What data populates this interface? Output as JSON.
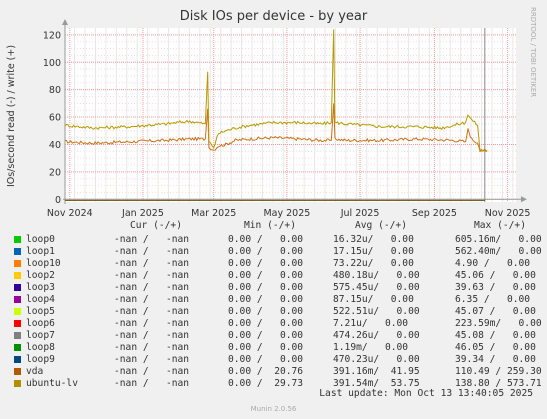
{
  "window": {
    "title": "Disk IOs per device - by year"
  },
  "side_label": "RRDTOOL / TOBI OETIKER",
  "chart_data": {
    "type": "line",
    "title": "Disk IOs per device - by year",
    "ylabel": "IOs/second read (-) / write (+)",
    "ylim": [
      -2,
      125
    ],
    "yticks": [
      0,
      20,
      40,
      60,
      80,
      100,
      120
    ],
    "xticks": [
      {
        "label": "Nov 2024",
        "t": 0
      },
      {
        "label": "Jan 2025",
        "t": 61
      },
      {
        "label": "Mar 2025",
        "t": 120
      },
      {
        "label": "May 2025",
        "t": 181
      },
      {
        "label": "Jul 2025",
        "t": 242
      },
      {
        "label": "Sep 2025",
        "t": 304
      },
      {
        "label": "Nov 2025",
        "t": 365
      }
    ],
    "xlim": [
      -4,
      372
    ],
    "now_marker_t": 346,
    "grid": true,
    "series": [
      {
        "name": "vda",
        "color": "#cc7016",
        "points": [
          [
            -4,
            42
          ],
          [
            20,
            41
          ],
          [
            50,
            42
          ],
          [
            80,
            43
          ],
          [
            100,
            44
          ],
          [
            113,
            44
          ],
          [
            115,
            66
          ],
          [
            116,
            38
          ],
          [
            120,
            36
          ],
          [
            124,
            39
          ],
          [
            130,
            40
          ],
          [
            138,
            43
          ],
          [
            150,
            44
          ],
          [
            170,
            45
          ],
          [
            190,
            44
          ],
          [
            210,
            43
          ],
          [
            218,
            43
          ],
          [
            220,
            70
          ],
          [
            221,
            44
          ],
          [
            230,
            43
          ],
          [
            260,
            43
          ],
          [
            290,
            44
          ],
          [
            320,
            43
          ],
          [
            330,
            42
          ],
          [
            332,
            51
          ],
          [
            335,
            44
          ],
          [
            340,
            41
          ],
          [
            342,
            36
          ],
          [
            348,
            35
          ]
        ]
      },
      {
        "name": "ubuntu-lv",
        "color": "#b59a00",
        "points": [
          [
            -4,
            54
          ],
          [
            20,
            52
          ],
          [
            50,
            53
          ],
          [
            80,
            55
          ],
          [
            100,
            57
          ],
          [
            113,
            55
          ],
          [
            115,
            93
          ],
          [
            116,
            42
          ],
          [
            120,
            38
          ],
          [
            124,
            48
          ],
          [
            130,
            50
          ],
          [
            138,
            52
          ],
          [
            150,
            54
          ],
          [
            170,
            56
          ],
          [
            190,
            56
          ],
          [
            210,
            55
          ],
          [
            218,
            56
          ],
          [
            220,
            124
          ],
          [
            221,
            56
          ],
          [
            230,
            55
          ],
          [
            260,
            53
          ],
          [
            290,
            53
          ],
          [
            310,
            52
          ],
          [
            325,
            55
          ],
          [
            330,
            56
          ],
          [
            332,
            62
          ],
          [
            335,
            58
          ],
          [
            340,
            54
          ],
          [
            342,
            36
          ],
          [
            348,
            35
          ]
        ]
      }
    ]
  },
  "legend": {
    "headers": {
      "cur": "Cur (-/+)",
      "min": "Min (-/+)",
      "avg": "Avg (-/+)",
      "max": "Max (-/+)"
    },
    "rows": [
      {
        "color": "#00cc00",
        "name": "loop0",
        "cur": "-nan /   -nan",
        "min": "0.00 /   0.00",
        "avg": "16.32u/   0.00",
        "max": "605.16m/   0.00"
      },
      {
        "color": "#0066b3",
        "name": "loop1",
        "cur": "-nan /   -nan",
        "min": "0.00 /   0.00",
        "avg": "17.15u/   0.00",
        "max": "562.40m/   0.00"
      },
      {
        "color": "#ff8000",
        "name": "loop10",
        "cur": "-nan /   -nan",
        "min": "0.00 /   0.00",
        "avg": "73.22u/   0.00",
        "max": "4.90 /   0.00"
      },
      {
        "color": "#ffcc00",
        "name": "loop2",
        "cur": "-nan /   -nan",
        "min": "0.00 /   0.00",
        "avg": "480.18u/   0.00",
        "max": "45.06 /   0.00"
      },
      {
        "color": "#330099",
        "name": "loop3",
        "cur": "-nan /   -nan",
        "min": "0.00 /   0.00",
        "avg": "575.45u/   0.00",
        "max": "39.63 /   0.00"
      },
      {
        "color": "#990099",
        "name": "loop4",
        "cur": "-nan /   -nan",
        "min": "0.00 /   0.00",
        "avg": "87.15u/   0.00",
        "max": "6.35 /   0.00"
      },
      {
        "color": "#ccff00",
        "name": "loop5",
        "cur": "-nan /   -nan",
        "min": "0.00 /   0.00",
        "avg": "522.51u/   0.00",
        "max": "45.07 /   0.00"
      },
      {
        "color": "#ff0000",
        "name": "loop6",
        "cur": "-nan /   -nan",
        "min": "0.00 /   0.00",
        "avg": "7.21u/   0.00",
        "max": "223.59m/   0.00"
      },
      {
        "color": "#808080",
        "name": "loop7",
        "cur": "-nan /   -nan",
        "min": "0.00 /   0.00",
        "avg": "474.26u/   0.00",
        "max": "45.08 /   0.00"
      },
      {
        "color": "#008f00",
        "name": "loop8",
        "cur": "-nan /   -nan",
        "min": "0.00 /   0.00",
        "avg": "1.19m/   0.00",
        "max": "46.05 /   0.00"
      },
      {
        "color": "#00487d",
        "name": "loop9",
        "cur": "-nan /   -nan",
        "min": "0.00 /   0.00",
        "avg": "470.23u/   0.00",
        "max": "39.34 /   0.00"
      },
      {
        "color": "#b35a00",
        "name": "vda",
        "cur": "-nan /   -nan",
        "min": "0.00 /  20.76",
        "avg": "391.16m/  41.95",
        "max": "110.49 / 259.30"
      },
      {
        "color": "#b38f00",
        "name": "ubuntu-lv",
        "cur": "-nan /   -nan",
        "min": "0.00 /  29.73",
        "avg": "391.54m/  53.75",
        "max": "138.80 / 573.71"
      }
    ]
  },
  "last_update": "Last update: Mon Oct 13 13:40:05 2025",
  "footer": "Munin 2.0.56"
}
